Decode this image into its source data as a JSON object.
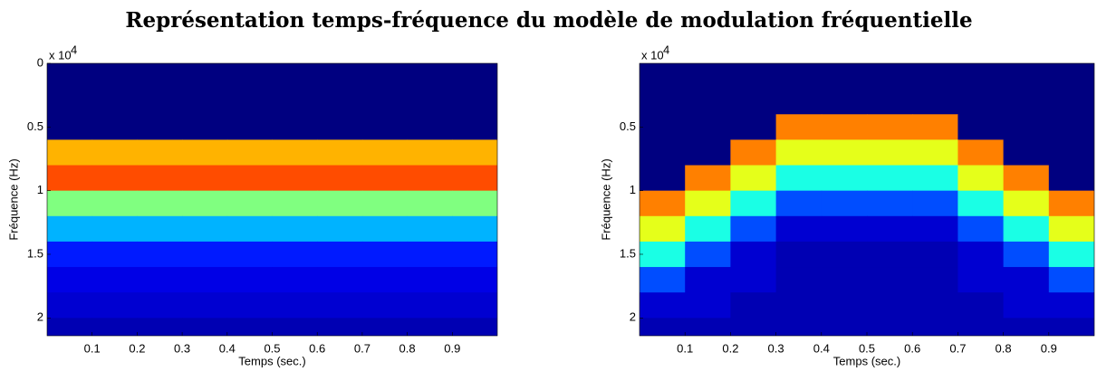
{
  "title": "Représentation temps-fréquence du modèle de modulation fréquentielle",
  "chart_data": [
    {
      "type": "heatmap",
      "colormap": "jet",
      "xlabel": "Temps (sec.)",
      "ylabel": "Fréquence (Hz)",
      "y_multiplier": "x 10",
      "y_multiplier_exponent": "4",
      "xlim": [
        0,
        1
      ],
      "ylim": [
        0,
        2.14
      ],
      "y_inverted": true,
      "xticks": [
        0.1,
        0.2,
        0.3,
        0.4,
        0.5,
        0.6,
        0.7,
        0.8,
        0.9
      ],
      "yticks": [
        0,
        0.5,
        1,
        1.5,
        2
      ],
      "x": [
        0.05,
        0.15,
        0.25,
        0.35,
        0.45,
        0.55,
        0.65,
        0.75,
        0.85,
        0.95
      ],
      "y": [
        0.1,
        0.3,
        0.5,
        0.7,
        0.9,
        1.1,
        1.3,
        1.5,
        1.7,
        1.9,
        2.1
      ],
      "z": [
        [
          0,
          0,
          0,
          0,
          0,
          0,
          0,
          0,
          0,
          0
        ],
        [
          0,
          0,
          0,
          0,
          0,
          0,
          0,
          0,
          0,
          0
        ],
        [
          0,
          0,
          0,
          0,
          0,
          0,
          0,
          0,
          0,
          0
        ],
        [
          0.7,
          0.7,
          0.7,
          0.7,
          0.7,
          0.7,
          0.7,
          0.7,
          0.7,
          0.7
        ],
        [
          0.8,
          0.8,
          0.8,
          0.8,
          0.8,
          0.8,
          0.8,
          0.8,
          0.8,
          0.8
        ],
        [
          0.5,
          0.5,
          0.5,
          0.5,
          0.5,
          0.5,
          0.5,
          0.5,
          0.5,
          0.5
        ],
        [
          0.3,
          0.3,
          0.3,
          0.3,
          0.3,
          0.3,
          0.3,
          0.3,
          0.3,
          0.3
        ],
        [
          0.15,
          0.15,
          0.15,
          0.15,
          0.15,
          0.15,
          0.15,
          0.15,
          0.15,
          0.15
        ],
        [
          0.1,
          0.1,
          0.1,
          0.1,
          0.1,
          0.1,
          0.1,
          0.1,
          0.1,
          0.1
        ],
        [
          0.08,
          0.08,
          0.08,
          0.08,
          0.08,
          0.08,
          0.08,
          0.08,
          0.08,
          0.08
        ],
        [
          0.05,
          0.05,
          0.05,
          0.05,
          0.05,
          0.05,
          0.05,
          0.05,
          0.05,
          0.05
        ]
      ]
    },
    {
      "type": "heatmap",
      "colormap": "jet",
      "xlabel": "Temps (sec.)",
      "ylabel": "Fréquence (Hz)",
      "y_multiplier": "x 10",
      "y_multiplier_exponent": "4",
      "xlim": [
        0,
        1
      ],
      "ylim": [
        0,
        2.14
      ],
      "y_inverted": true,
      "xticks": [
        0.1,
        0.2,
        0.3,
        0.4,
        0.5,
        0.6,
        0.7,
        0.8,
        0.9
      ],
      "yticks": [
        0.5,
        1,
        1.5,
        2
      ],
      "x": [
        0.05,
        0.15,
        0.25,
        0.35,
        0.45,
        0.55,
        0.65,
        0.75,
        0.85,
        0.95
      ],
      "y": [
        0.1,
        0.3,
        0.5,
        0.7,
        0.9,
        1.1,
        1.3,
        1.5,
        1.7,
        1.9,
        2.1
      ],
      "z": [
        [
          0,
          0,
          0,
          0,
          0,
          0,
          0,
          0,
          0,
          0
        ],
        [
          0,
          0,
          0,
          0,
          0,
          0,
          0,
          0,
          0,
          0
        ],
        [
          0,
          0,
          0,
          0.75,
          0.75,
          0.75,
          0.75,
          0,
          0,
          0
        ],
        [
          0,
          0,
          0.75,
          0.6,
          0.6,
          0.6,
          0.6,
          0.75,
          0,
          0
        ],
        [
          0,
          0.75,
          0.6,
          0.4,
          0.4,
          0.4,
          0.4,
          0.6,
          0.75,
          0
        ],
        [
          0.75,
          0.6,
          0.4,
          0.2,
          0.2,
          0.2,
          0.2,
          0.4,
          0.6,
          0.75
        ],
        [
          0.6,
          0.4,
          0.2,
          0.08,
          0.08,
          0.08,
          0.08,
          0.2,
          0.4,
          0.6
        ],
        [
          0.4,
          0.2,
          0.08,
          0.05,
          0.05,
          0.05,
          0.05,
          0.08,
          0.2,
          0.4
        ],
        [
          0.2,
          0.08,
          0.08,
          0.05,
          0.05,
          0.05,
          0.05,
          0.08,
          0.08,
          0.2
        ],
        [
          0.08,
          0.08,
          0.05,
          0.05,
          0.05,
          0.05,
          0.05,
          0.05,
          0.08,
          0.08
        ],
        [
          0.05,
          0.05,
          0.05,
          0.05,
          0.05,
          0.05,
          0.05,
          0.05,
          0.05,
          0.05
        ]
      ]
    }
  ]
}
